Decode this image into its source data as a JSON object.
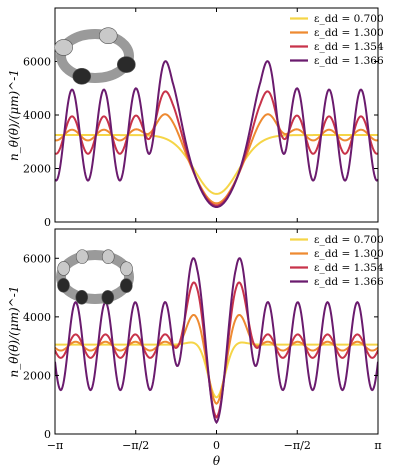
{
  "chart_data": [
    {
      "type": "line",
      "ylabel": "n_θ(θ)/(μm)^-1",
      "xlabel": "",
      "xlim": [
        -3.14159,
        3.14159
      ],
      "ylim": [
        0,
        8000
      ],
      "yticks": [
        "0",
        "2000",
        "4000",
        "6000"
      ],
      "legend_position": "top-right",
      "inset": "torus-density-icon",
      "series": [
        {
          "name": "ε_dd = 0.700",
          "color": "#f5d547",
          "mean": 3250,
          "min": 1050,
          "amp": 0,
          "peak": 0,
          "wells": 0
        },
        {
          "name": "ε_dd = 1.300",
          "color": "#ee8a31",
          "mean": 3250,
          "min": 700,
          "amp": 200,
          "peak": 4150,
          "wells": 1
        },
        {
          "name": "ε_dd = 1.354",
          "color": "#c8334a",
          "mean": 3250,
          "min": 620,
          "amp": 700,
          "peak": 4900,
          "wells": 2
        },
        {
          "name": "ε_dd = 1.366",
          "color": "#6a1b6e",
          "mean": 3250,
          "min": 560,
          "amp": 1700,
          "peak": 5800,
          "wells": 3
        }
      ]
    },
    {
      "type": "line",
      "ylabel": "n_θ(θ)/(μm)^-1",
      "xlabel": "θ",
      "xlim": [
        -3.14159,
        3.14159
      ],
      "ylim": [
        0,
        7000
      ],
      "yticks": [
        "0",
        "2000",
        "4000",
        "6000"
      ],
      "xticks": [
        "−π",
        "−π/2",
        "0",
        "−π/2",
        "π"
      ],
      "legend_position": "top-right",
      "inset": "torus-density-icon",
      "series": [
        {
          "name": "ε_dd = 0.700",
          "color": "#f5d547",
          "mean": 3050,
          "min": 1250,
          "amp": 0,
          "peak": 3150,
          "wells": 0
        },
        {
          "name": "ε_dd = 1.300",
          "color": "#ee8a31",
          "mean": 3000,
          "min": 1000,
          "amp": 150,
          "peak": 4100,
          "wells": 1
        },
        {
          "name": "ε_dd = 1.354",
          "color": "#c8334a",
          "mean": 3000,
          "min": 500,
          "amp": 400,
          "peak": 5200,
          "wells": 2
        },
        {
          "name": "ε_dd = 1.366",
          "color": "#6a1b6e",
          "mean": 3000,
          "min": 300,
          "amp": 1500,
          "peak": 5900,
          "wells": 3
        }
      ]
    }
  ]
}
